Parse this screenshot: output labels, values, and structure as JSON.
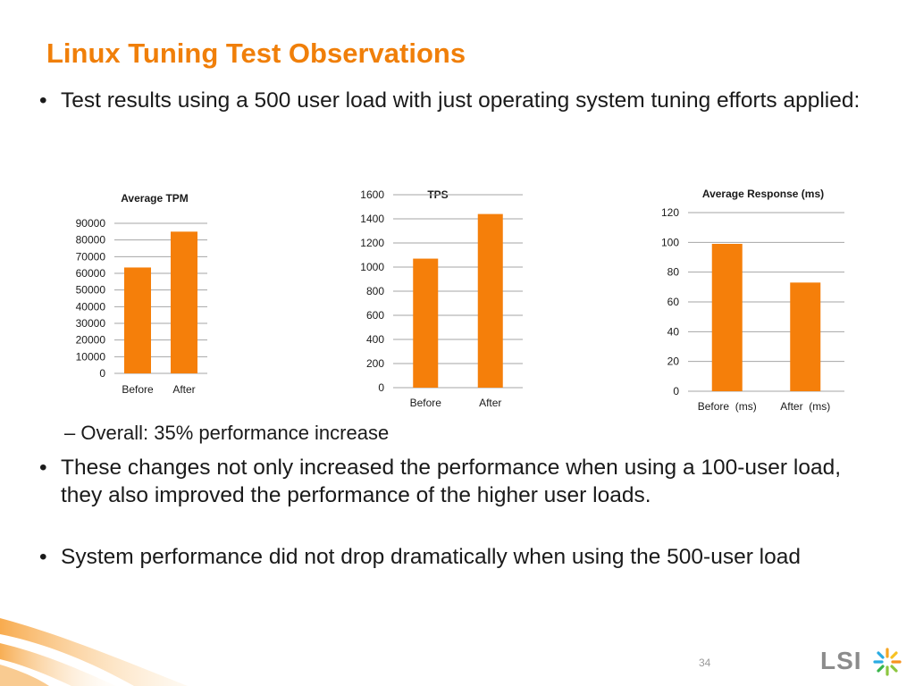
{
  "slide": {
    "title": "Linux Tuning Test Observations",
    "bullets": [
      {
        "marker": "•",
        "text": "Test results using a 500 user load with just operating system tuning efforts applied:"
      },
      {
        "marker": "•",
        "text": "These changes not only increased the performance when using a 100-user load, they also improved the performance of the higher user loads."
      },
      {
        "marker": "•",
        "text": "System performance did not drop dramatically when using the 500-user load"
      }
    ],
    "sub_bullet": {
      "marker": "–",
      "text": "Overall: 35% performance increase"
    },
    "page_number": "34",
    "logo_text": "LSI"
  },
  "colors": {
    "accent": "#f07f09",
    "bar": "#f57f0a",
    "grid": "#a6a6a6"
  },
  "chart_data": [
    {
      "type": "bar",
      "title": "Average TPM",
      "categories": [
        "Before",
        "After"
      ],
      "values": [
        63500,
        85000
      ],
      "ylim": [
        0,
        90000
      ],
      "yticks": [
        "0",
        "10000",
        "20000",
        "30000",
        "40000",
        "50000",
        "60000",
        "70000",
        "80000",
        "90000"
      ],
      "grid": true
    },
    {
      "type": "bar",
      "title": "TPS",
      "categories": [
        "Before",
        "After"
      ],
      "values": [
        1070,
        1440
      ],
      "ylim": [
        0,
        1600
      ],
      "yticks": [
        "0",
        "200",
        "400",
        "600",
        "800",
        "1000",
        "1200",
        "1400",
        "1600"
      ],
      "grid": true
    },
    {
      "type": "bar",
      "title": "Average Response (ms)",
      "categories": [
        "Before  (ms)",
        "After  (ms)"
      ],
      "values": [
        99,
        73
      ],
      "ylim": [
        0,
        120
      ],
      "yticks": [
        "0",
        "20",
        "40",
        "60",
        "80",
        "100",
        "120"
      ],
      "grid": true
    }
  ]
}
